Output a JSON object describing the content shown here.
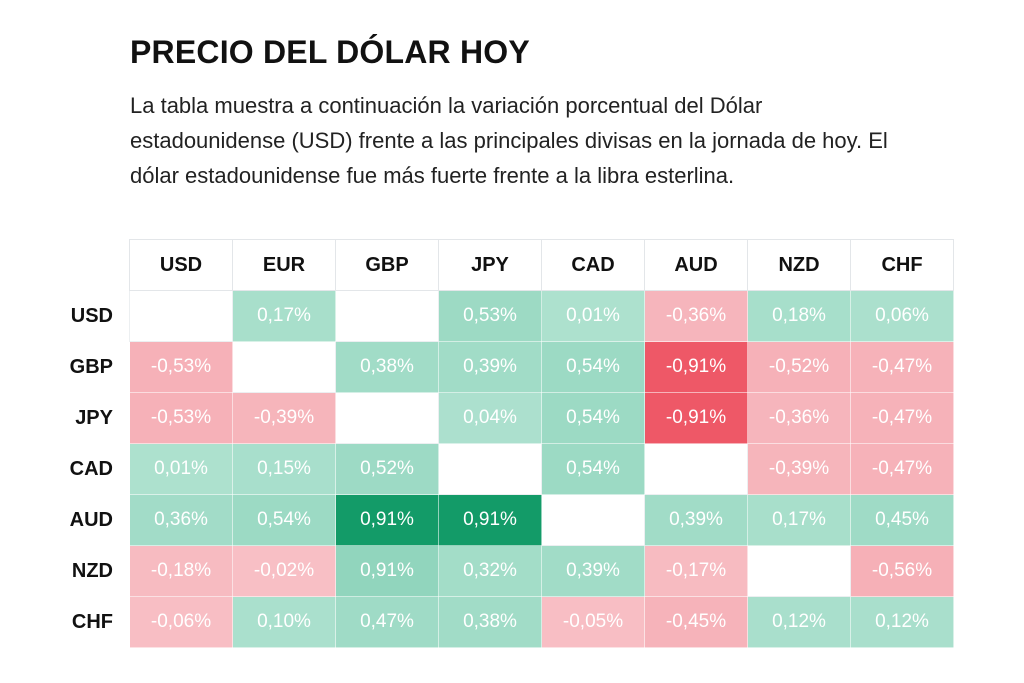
{
  "title": "PRECIO DEL DÓLAR HOY",
  "description": "La tabla muestra a continuación la variación porcentual del Dólar estadounidense (USD) frente a las principales divisas en la jornada de hoy. El dólar estadounidense fue más fuerte frente a la libra esterlina.",
  "chart_data": {
    "type": "heatmap",
    "columns": [
      "USD",
      "EUR",
      "GBP",
      "JPY",
      "CAD",
      "AUD",
      "NZD",
      "CHF"
    ],
    "rows": [
      {
        "label": "USD",
        "values": [
          null,
          0.17,
          null,
          0.53,
          0.01,
          -0.36,
          0.18,
          0.06
        ],
        "texts": [
          "",
          "0,17%",
          "",
          "0,53%",
          "0,01%",
          "-0,36%",
          "0,18%",
          "0,06%"
        ]
      },
      {
        "label": "GBP",
        "values": [
          -0.53,
          null,
          0.38,
          0.39,
          0.54,
          -0.91,
          -0.52,
          -0.47
        ],
        "texts": [
          "-0,53%",
          "",
          "0,38%",
          "0,39%",
          "0,54%",
          "-0,91%",
          "-0,52%",
          "-0,47%"
        ]
      },
      {
        "label": "JPY",
        "values": [
          -0.53,
          -0.39,
          null,
          0.04,
          0.54,
          -0.91,
          -0.36,
          -0.47
        ],
        "texts": [
          "-0,53%",
          "-0,39%",
          "",
          "0,04%",
          "0,54%",
          "-0,91%",
          "-0,36%",
          "-0,47%"
        ]
      },
      {
        "label": "CAD",
        "values": [
          0.01,
          0.15,
          0.52,
          null,
          0.54,
          null,
          -0.39,
          -0.47
        ],
        "texts": [
          "0,01%",
          "0,15%",
          "0,52%",
          "",
          "0,54%",
          "",
          "-0,39%",
          "-0,47%"
        ]
      },
      {
        "label": "AUD",
        "values": [
          0.36,
          0.54,
          0.91,
          0.91,
          null,
          0.39,
          0.17,
          0.45
        ],
        "texts": [
          "0,36%",
          "0,54%",
          "0,91%",
          "0,91%",
          "",
          "0,39%",
          "0,17%",
          "0,45%"
        ]
      },
      {
        "label": "NZD",
        "values": [
          -0.18,
          -0.02,
          0.91,
          0.32,
          0.39,
          -0.17,
          null,
          -0.56
        ],
        "texts": [
          "-0,18%",
          "-0,02%",
          "0,91%",
          "0,32%",
          "0,39%",
          "-0,17%",
          "",
          "-0,56%"
        ]
      },
      {
        "label": "CHF",
        "values": [
          -0.06,
          0.1,
          0.47,
          0.38,
          -0.05,
          -0.45,
          0.12,
          0.12
        ],
        "texts": [
          "-0,06%",
          "0,10%",
          "0,47%",
          "0,38%",
          "-0,05%",
          "-0,45%",
          "0,12%",
          "0,12%"
        ]
      }
    ],
    "strong_cells": [
      [
        4,
        2
      ],
      [
        4,
        3
      ],
      [
        1,
        5
      ],
      [
        2,
        5
      ]
    ],
    "colors": {
      "positive": "#91d5bd",
      "positive_strong": "#139b68",
      "negative": "#f4a6ae",
      "negative_strong": "#ee5867",
      "empty": "#ffffff"
    }
  }
}
